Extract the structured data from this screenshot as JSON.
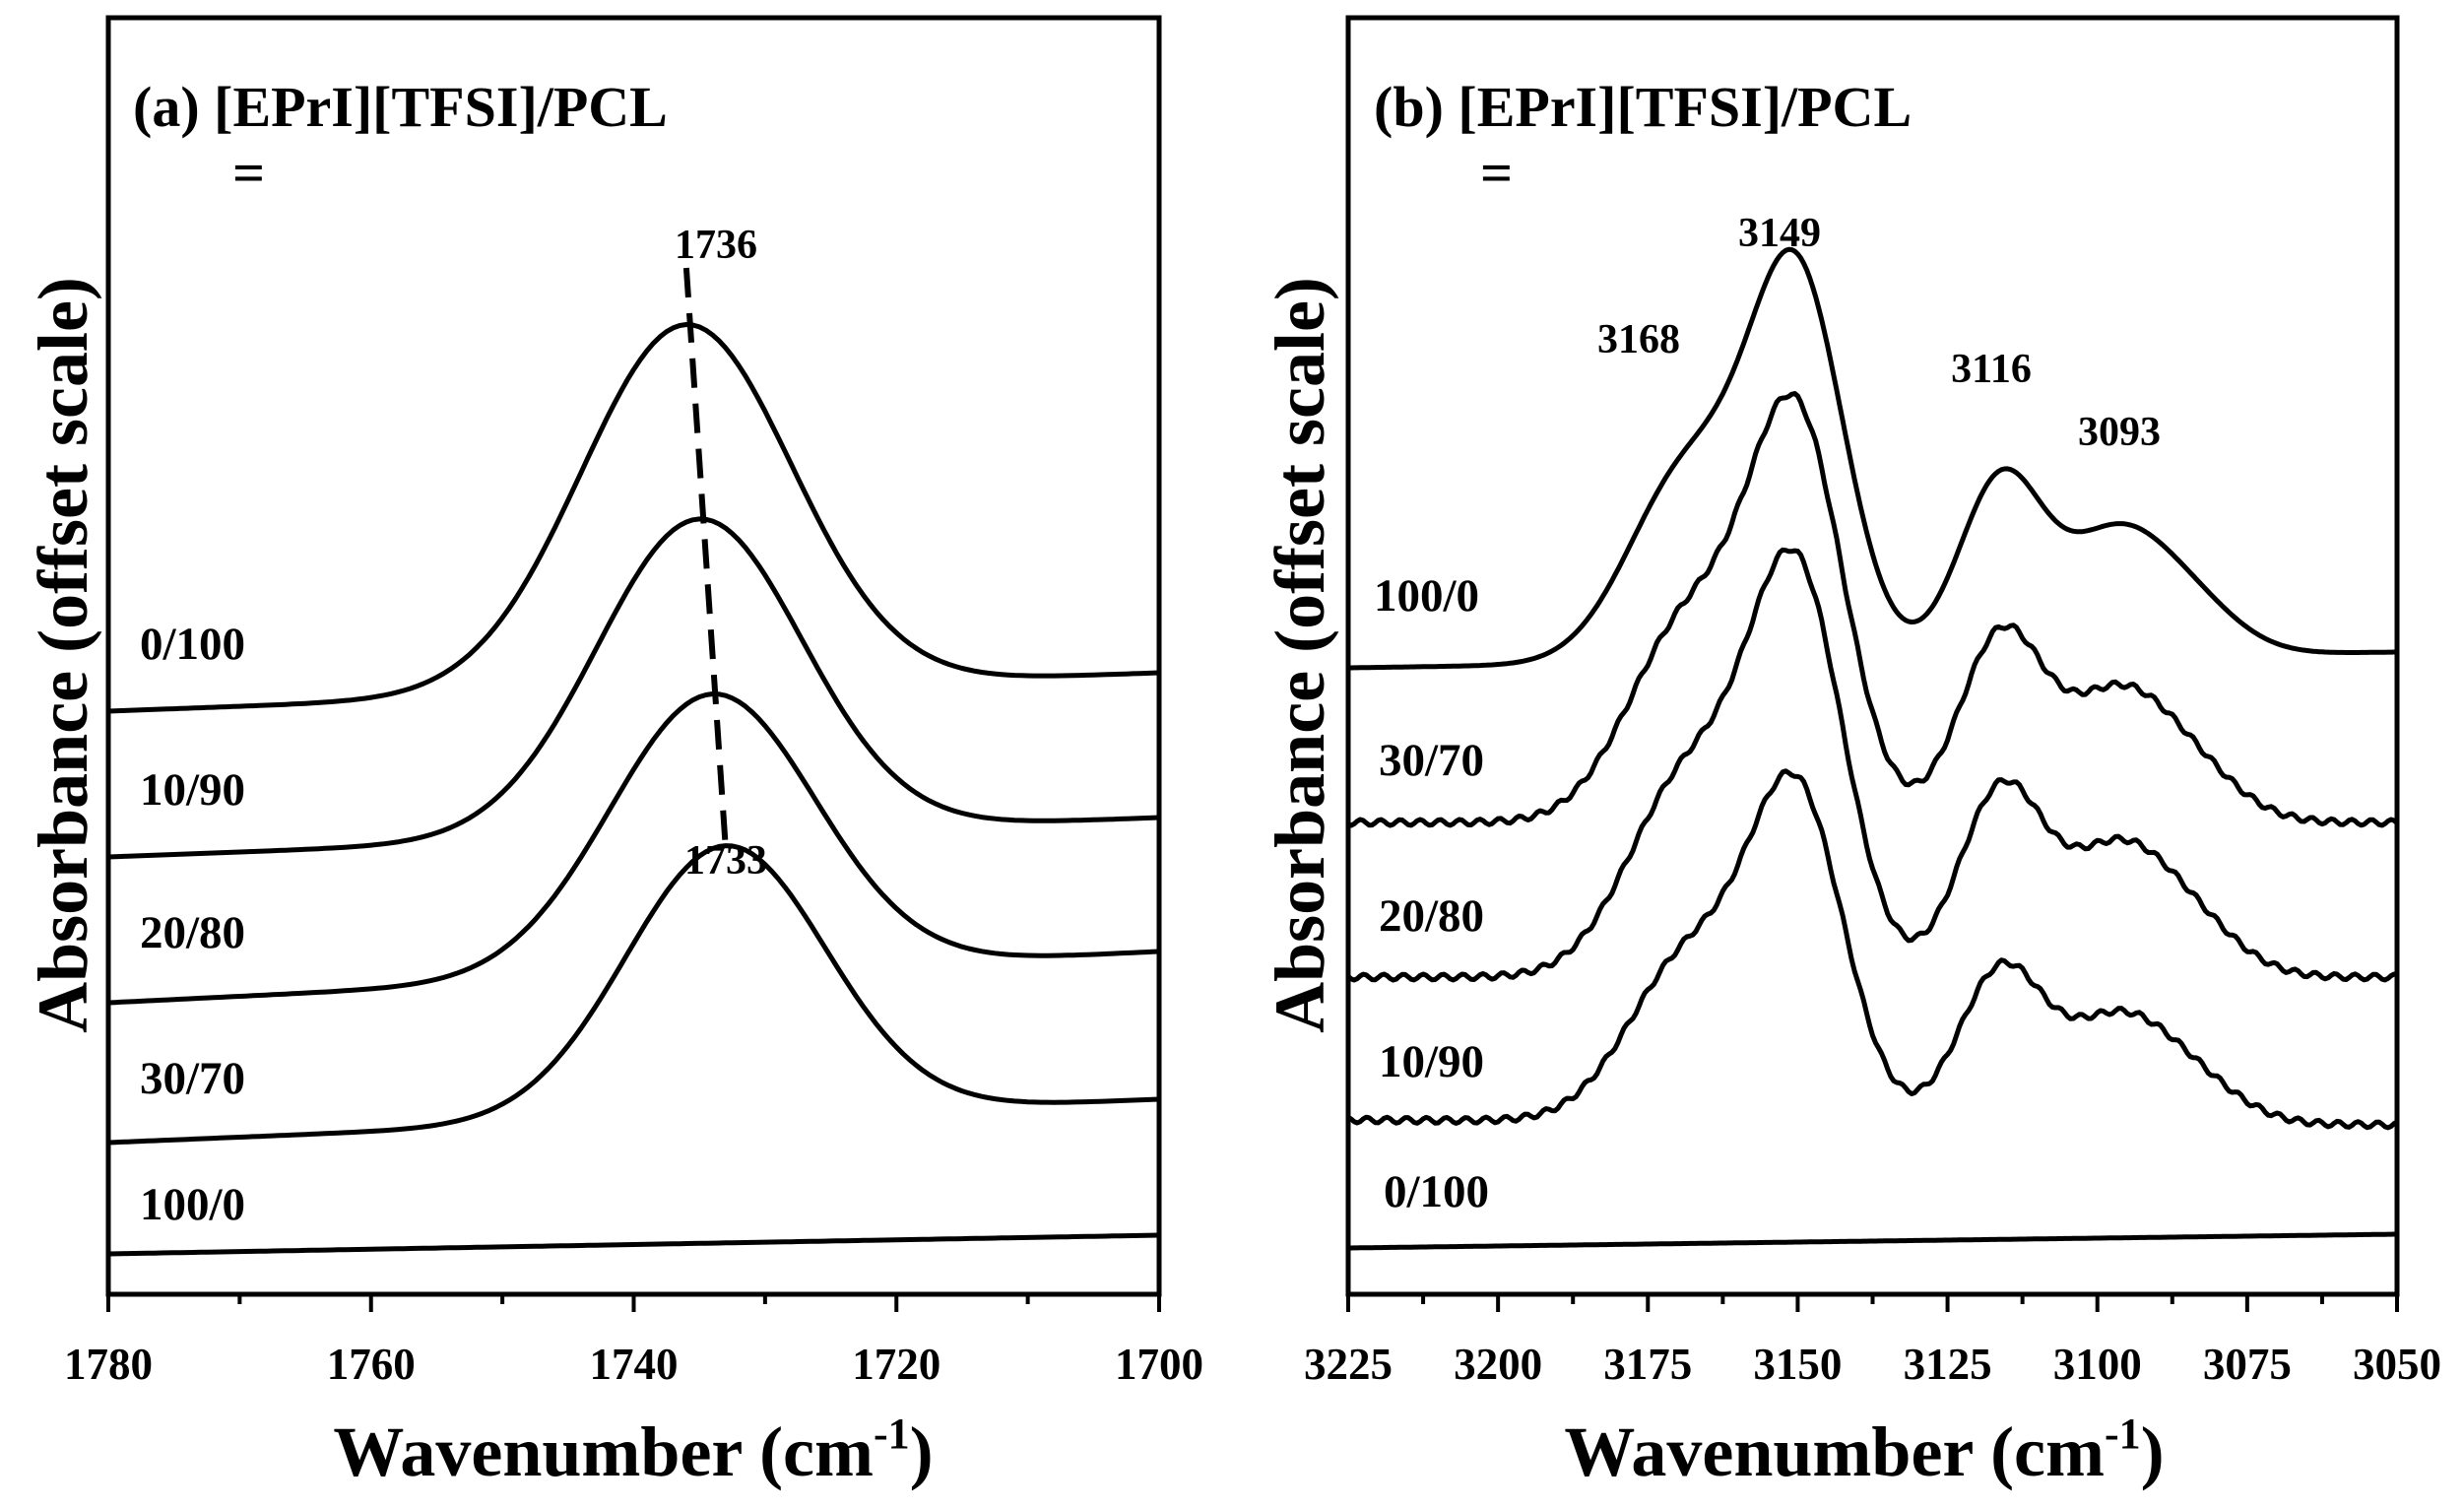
{
  "chart_data": [
    {
      "panel": "a",
      "type": "line",
      "title": "(a) [EPrI][TFSI]/PCL",
      "title_suffix": "=",
      "xlabel": "Wavenumber (cm",
      "xlabel_sup": "-1",
      "xlabel_close": ")",
      "ylabel": "Absorbance (offset scale)",
      "xlim": [
        1780,
        1700
      ],
      "x_reversed": true,
      "y_offset_scale": true,
      "x_ticks_major": [
        1780,
        1760,
        1740,
        1720,
        1700
      ],
      "x_ticks_minor": [
        1770,
        1750,
        1730,
        1710
      ],
      "tick_labels": [
        "1780",
        "1760",
        "1740",
        "1720",
        "1700"
      ],
      "series": [
        {
          "name": "0/100",
          "label": "0/100",
          "baseline": 0.0,
          "peak_position": 1736,
          "peak_height": 1.4,
          "peak_width": 8.0
        },
        {
          "name": "10/90",
          "label": "10/90",
          "baseline": 0.0,
          "peak_position": 1735,
          "peak_height": 1.21,
          "peak_width": 7.8
        },
        {
          "name": "20/80",
          "label": "20/80",
          "baseline": 0.0,
          "peak_position": 1734,
          "peak_height": 1.07,
          "peak_width": 7.8
        },
        {
          "name": "30/70",
          "label": "30/70",
          "baseline": 0.0,
          "peak_position": 1733,
          "peak_height": 1.04,
          "peak_width": 7.6
        },
        {
          "name": "100/0",
          "label": "100/0",
          "baseline": 0.0,
          "peak_position": 1715,
          "peak_height": 0.0,
          "peak_width": 10.0
        }
      ],
      "annotations": [
        {
          "text": "1736",
          "x": 1736
        },
        {
          "text": "1733",
          "x": 1733
        }
      ]
    },
    {
      "panel": "b",
      "type": "line",
      "title": "(b) [EPrI][TFSI]/PCL",
      "title_suffix": "=",
      "xlabel": "Wavenumber (cm",
      "xlabel_sup": "-1",
      "xlabel_close": ")",
      "ylabel": "Absorbance (offset scale)",
      "xlim": [
        3225,
        3050
      ],
      "x_reversed": true,
      "y_offset_scale": true,
      "x_ticks_major": [
        3225,
        3200,
        3175,
        3150,
        3125,
        3100,
        3075,
        3050
      ],
      "x_ticks_minor": [
        3212.5,
        3187.5,
        3162.5,
        3137.5,
        3112.5,
        3087.5,
        3062.5
      ],
      "tick_labels": [
        "3225",
        "3200",
        "3175",
        "3150",
        "3125",
        "3100",
        "3075",
        "3050"
      ],
      "series": [
        {
          "name": "100/0",
          "label": "100/0"
        },
        {
          "name": "30/70",
          "label": "30/70"
        },
        {
          "name": "20/80",
          "label": "20/80"
        },
        {
          "name": "10/90",
          "label": "10/90"
        },
        {
          "name": "0/100",
          "label": "0/100"
        }
      ],
      "peaks": [
        3168,
        3149,
        3116,
        3093
      ],
      "annotations": [
        {
          "text": "3168",
          "x": 3168
        },
        {
          "text": "3149",
          "x": 3149
        },
        {
          "text": "3116",
          "x": 3116
        },
        {
          "text": "3093",
          "x": 3093
        }
      ]
    }
  ]
}
